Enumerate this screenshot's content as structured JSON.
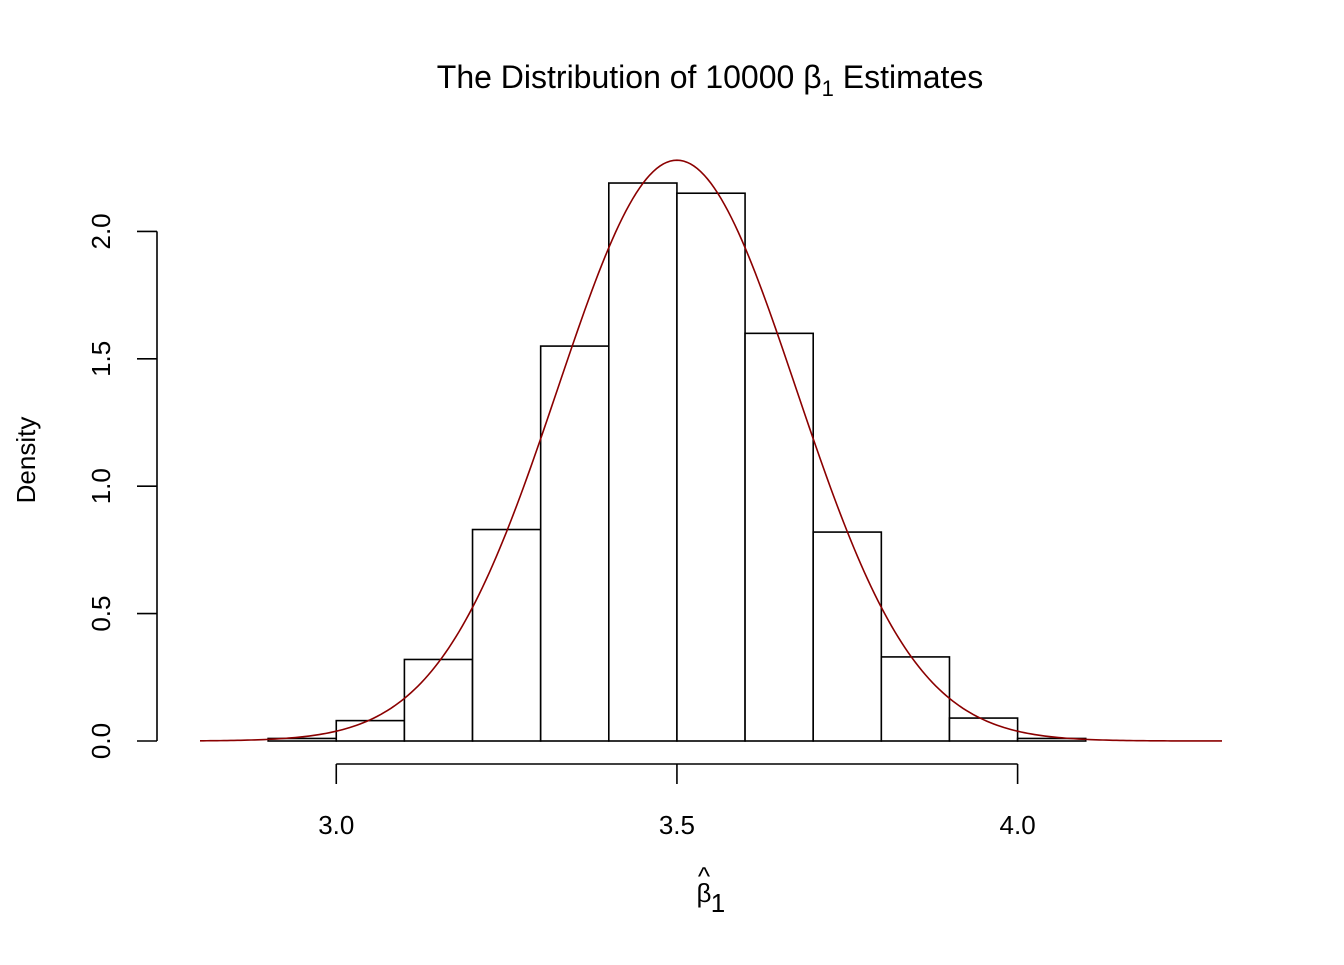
{
  "chart_data": {
    "type": "histogram",
    "title": {
      "prefix": "The Distribution of 10000 ",
      "symbol": "β",
      "subscript": "1",
      "suffix": " Estimates"
    },
    "xlabel": {
      "symbol": "β",
      "hat": "^",
      "subscript": "1"
    },
    "ylabel": "Density",
    "xlim": [
      2.8,
      4.3
    ],
    "ylim": [
      0,
      2.3
    ],
    "x_ticks": [
      3.0,
      3.5,
      4.0
    ],
    "x_tick_labels": [
      "3.0",
      "3.5",
      "4.0"
    ],
    "y_ticks": [
      0.0,
      0.5,
      1.0,
      1.5,
      2.0
    ],
    "y_tick_labels": [
      "0.0",
      "0.5",
      "1.0",
      "1.5",
      "2.0"
    ],
    "bins": [
      {
        "start": 2.9,
        "end": 3.0,
        "density": 0.01
      },
      {
        "start": 3.0,
        "end": 3.1,
        "density": 0.08
      },
      {
        "start": 3.1,
        "end": 3.2,
        "density": 0.32
      },
      {
        "start": 3.2,
        "end": 3.3,
        "density": 0.83
      },
      {
        "start": 3.3,
        "end": 3.4,
        "density": 1.55
      },
      {
        "start": 3.4,
        "end": 3.5,
        "density": 2.19
      },
      {
        "start": 3.5,
        "end": 3.6,
        "density": 2.15
      },
      {
        "start": 3.6,
        "end": 3.7,
        "density": 1.6
      },
      {
        "start": 3.7,
        "end": 3.8,
        "density": 0.82
      },
      {
        "start": 3.8,
        "end": 3.9,
        "density": 0.33
      },
      {
        "start": 3.9,
        "end": 4.0,
        "density": 0.09
      },
      {
        "start": 4.0,
        "end": 4.1,
        "density": 0.01
      }
    ],
    "curve": {
      "type": "normal-density",
      "mean": 3.5,
      "sd": 0.175,
      "x_range": [
        2.8,
        4.3
      ],
      "color": "#8B0000"
    },
    "grid": false,
    "legend": "none",
    "colors": {
      "bar_fill": "#ffffff",
      "bar_stroke": "#000000",
      "axis": "#000000",
      "curve": "#8B0000"
    }
  }
}
